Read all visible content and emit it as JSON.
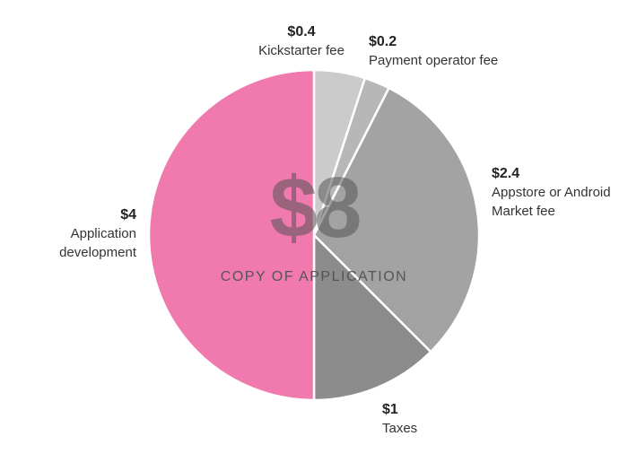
{
  "chart_data": {
    "type": "pie",
    "center_label": {
      "total": "$8",
      "subtitle": "COPY OF APPLICATION"
    },
    "slices": [
      {
        "value_label": "$0.4",
        "label": "Kickstarter fee",
        "value": 0.4,
        "color": "#cbcbcb"
      },
      {
        "value_label": "$0.2",
        "label": "Payment operator fee",
        "value": 0.2,
        "color": "#b7b7b7"
      },
      {
        "value_label": "$2.4",
        "label": "Appstore or Android Market fee",
        "value": 2.4,
        "color": "#a3a3a3"
      },
      {
        "value_label": "$1",
        "label": "Taxes",
        "value": 1,
        "color": "#8c8c8c"
      },
      {
        "value_label": "$4",
        "label": "Application development",
        "value": 4,
        "color": "#f07aae"
      }
    ],
    "center_color": "#555555"
  }
}
